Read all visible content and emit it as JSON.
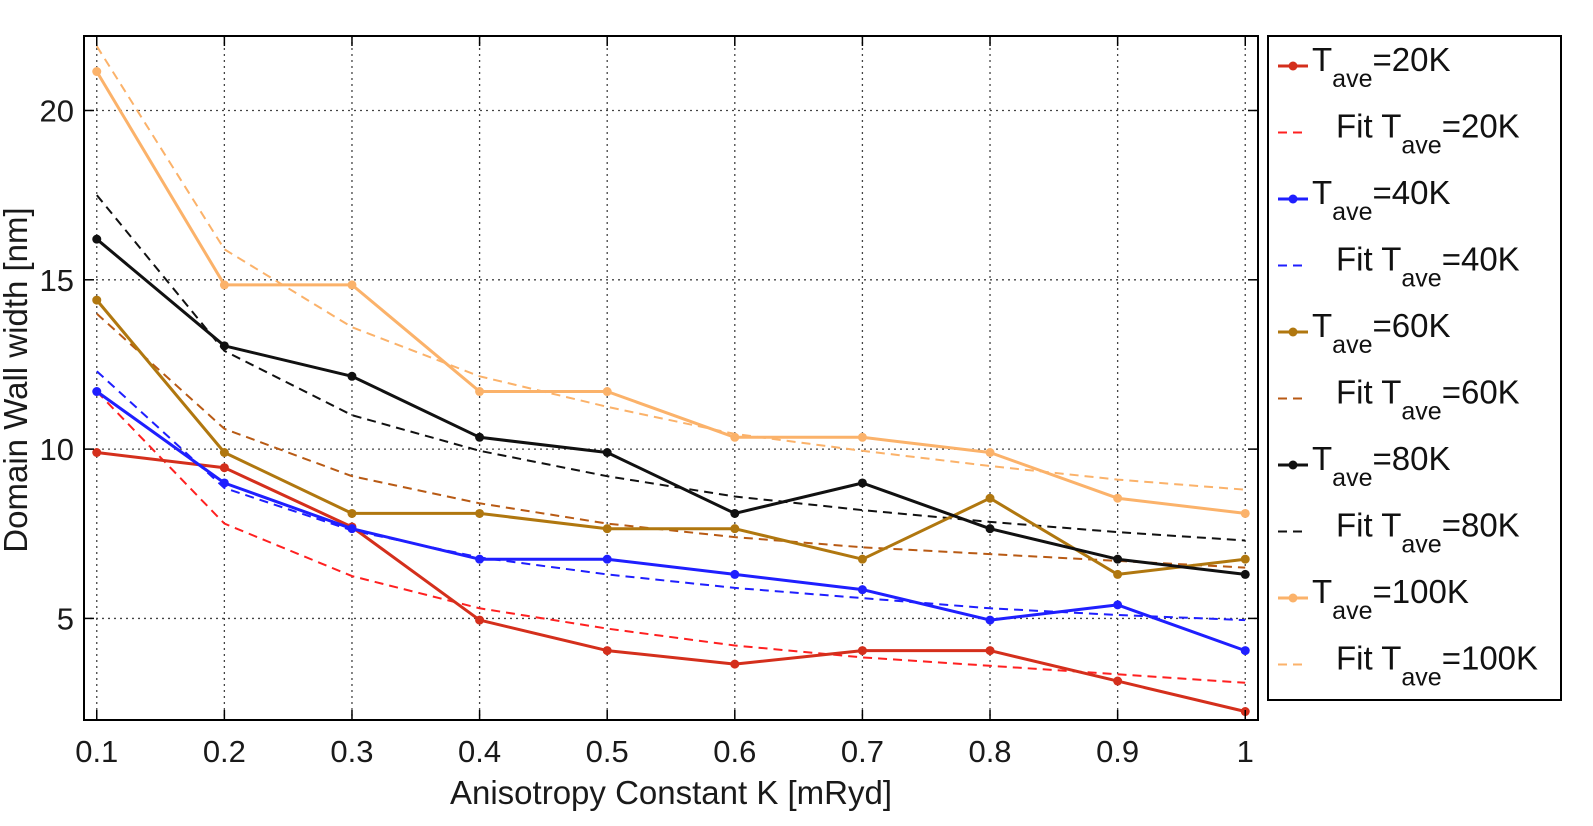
{
  "chart_data": {
    "type": "line",
    "title": "",
    "xlabel": "Anisotropy Constant K [mRyd]",
    "ylabel": "Domain Wall width [nm]",
    "x": [
      0.1,
      0.2,
      0.3,
      0.4,
      0.5,
      0.6,
      0.7,
      0.8,
      0.9,
      1.0
    ],
    "xticks": [
      "0.1",
      "0.2",
      "0.3",
      "0.4",
      "0.5",
      "0.6",
      "0.7",
      "0.8",
      "0.9",
      "1"
    ],
    "yticks": [
      "5",
      "10",
      "15",
      "20"
    ],
    "xlim": [
      0.09,
      1.01
    ],
    "ylim": [
      2,
      22.2
    ],
    "grid": true,
    "legend_position": "outside-right",
    "series": [
      {
        "name": "T_ave=20K",
        "label_main": "T",
        "label_sub": "ave",
        "label_tail": "=20K",
        "color": "#d42f1c",
        "style": "solid-marker",
        "values": [
          9.9,
          9.45,
          7.7,
          4.95,
          4.05,
          3.65,
          4.05,
          4.05,
          3.15,
          2.25
        ]
      },
      {
        "name": "Fit T_ave=20K",
        "label_main": "Fit T",
        "label_sub": "ave",
        "label_tail": "=20K",
        "color": "#ff2020",
        "style": "dashed",
        "values": [
          11.7,
          7.8,
          6.25,
          5.3,
          4.7,
          4.2,
          3.85,
          3.6,
          3.35,
          3.1
        ]
      },
      {
        "name": "T_ave=40K",
        "label_main": "T",
        "label_sub": "ave",
        "label_tail": "=40K",
        "color": "#1f1fff",
        "style": "solid-marker",
        "values": [
          11.7,
          9.0,
          7.65,
          6.75,
          6.75,
          6.3,
          5.85,
          4.95,
          5.4,
          4.05
        ]
      },
      {
        "name": "Fit T_ave=40K",
        "label_main": "Fit T",
        "label_sub": "ave",
        "label_tail": "=40K",
        "color": "#1f1fff",
        "style": "dashed",
        "values": [
          12.3,
          8.85,
          7.6,
          6.8,
          6.3,
          5.9,
          5.6,
          5.3,
          5.1,
          4.95
        ]
      },
      {
        "name": "T_ave=60K",
        "label_main": "T",
        "label_sub": "ave",
        "label_tail": "=60K",
        "color": "#b0770f",
        "style": "solid-marker",
        "values": [
          14.4,
          9.9,
          8.1,
          8.1,
          7.65,
          7.65,
          6.75,
          8.55,
          6.3,
          6.75
        ]
      },
      {
        "name": "Fit T_ave=60K",
        "label_main": "Fit T",
        "label_sub": "ave",
        "label_tail": "=60K",
        "color": "#b85a14",
        "style": "dashed",
        "values": [
          14.0,
          10.6,
          9.2,
          8.4,
          7.8,
          7.4,
          7.1,
          6.9,
          6.7,
          6.5
        ]
      },
      {
        "name": "T_ave=80K",
        "label_main": "T",
        "label_sub": "ave",
        "label_tail": "=80K",
        "color": "#111111",
        "style": "solid-marker",
        "values": [
          16.2,
          13.05,
          12.15,
          10.35,
          9.9,
          8.1,
          9.0,
          7.65,
          6.75,
          6.3
        ]
      },
      {
        "name": "Fit T_ave=80K",
        "label_main": "Fit T",
        "label_sub": "ave",
        "label_tail": "=80K",
        "color": "#111111",
        "style": "dashed",
        "values": [
          17.5,
          12.9,
          11.0,
          9.95,
          9.2,
          8.6,
          8.2,
          7.85,
          7.55,
          7.3
        ]
      },
      {
        "name": "T_ave=100K",
        "label_main": "T",
        "label_sub": "ave",
        "label_tail": "=100K",
        "color": "#fbb26a",
        "style": "solid-marker",
        "values": [
          21.15,
          14.85,
          14.85,
          11.7,
          11.7,
          10.35,
          10.35,
          9.9,
          8.55,
          8.1
        ]
      },
      {
        "name": "Fit T_ave=100K",
        "label_main": "Fit T",
        "label_sub": "ave",
        "label_tail": "=100K",
        "color": "#fbb26a",
        "style": "dashed",
        "values": [
          21.9,
          15.9,
          13.6,
          12.15,
          11.25,
          10.45,
          9.95,
          9.5,
          9.1,
          8.8
        ]
      }
    ]
  }
}
